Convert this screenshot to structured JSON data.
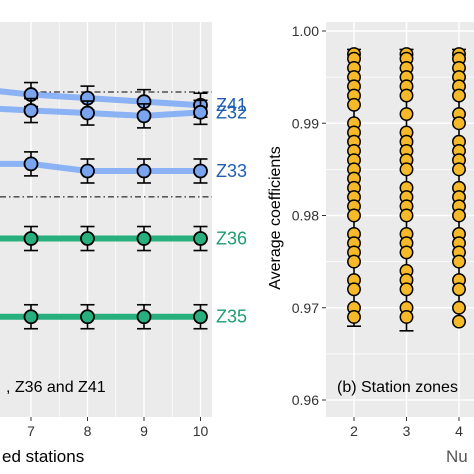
{
  "chart_data": [
    {
      "type": "line",
      "panel_label": ", Z36 and Z41",
      "xlabel": "ed stations",
      "x_ticks": [
        7,
        8,
        9,
        10
      ],
      "grid": true,
      "colors": {
        "blue_line": "#8bb2f4",
        "blue_point": "#7aa4ee",
        "blue_text": "#1f5fb3",
        "green": "#27b07e",
        "green_text": "#1e9e6f"
      },
      "series": [
        {
          "name": "Z41",
          "color_key": "blue",
          "x": [
            6.4,
            7,
            8,
            9,
            10
          ],
          "y": [
            0.955,
            0.945,
            0.935,
            0.925,
            0.915
          ]
        },
        {
          "name": "Z32",
          "color_key": "blue",
          "x": [
            6.4,
            7,
            8,
            9,
            10
          ],
          "y": [
            0.905,
            0.9,
            0.893,
            0.885,
            0.895
          ]
        },
        {
          "name": "Z33",
          "color_key": "blue",
          "x": [
            6.4,
            7,
            8,
            9,
            10
          ],
          "y": [
            0.75,
            0.75,
            0.73,
            0.73,
            0.73
          ]
        },
        {
          "name": "Z36",
          "color_key": "green",
          "x": [
            6.4,
            7,
            8,
            9,
            10
          ],
          "y": [
            0.54,
            0.54,
            0.54,
            0.54,
            0.54
          ]
        },
        {
          "name": "Z35",
          "color_key": "green",
          "x": [
            6.4,
            7,
            8,
            9,
            10
          ],
          "y": [
            0.32,
            0.32,
            0.32,
            0.32,
            0.32
          ]
        }
      ],
      "reference_lines": [
        0.955,
        0.66
      ]
    },
    {
      "type": "scatter",
      "panel_label": "(b) Station zones",
      "ylabel": "Average coefficients",
      "xlabel": "Nu",
      "x_ticks": [
        2,
        3,
        4
      ],
      "y_ticks": [
        0.96,
        0.97,
        0.98,
        0.99,
        "1.00"
      ],
      "ylim": [
        0.96,
        1.0
      ],
      "grid": true,
      "point_color": "#f5b929",
      "groups": [
        {
          "x": 2,
          "y": [
            0.9975,
            0.997,
            0.996,
            0.995,
            0.994,
            0.993,
            0.992,
            0.99,
            0.989,
            0.988,
            0.987,
            0.986,
            0.985,
            0.984,
            0.983,
            0.982,
            0.981,
            0.98,
            0.978,
            0.977,
            0.976,
            0.975,
            0.973,
            0.972,
            0.97,
            0.969
          ]
        },
        {
          "x": 3,
          "y": [
            0.9975,
            0.997,
            0.996,
            0.995,
            0.994,
            0.993,
            0.991,
            0.989,
            0.988,
            0.987,
            0.986,
            0.985,
            0.983,
            0.982,
            0.981,
            0.98,
            0.978,
            0.977,
            0.976,
            0.974,
            0.973,
            0.972,
            0.97,
            0.969
          ]
        },
        {
          "x": 4,
          "y": [
            0.9975,
            0.997,
            0.996,
            0.995,
            0.994,
            0.993,
            0.991,
            0.99,
            0.988,
            0.987,
            0.986,
            0.985,
            0.983,
            0.982,
            0.981,
            0.98,
            0.978,
            0.977,
            0.976,
            0.975,
            0.973,
            0.972,
            0.97,
            0.9685
          ]
        }
      ],
      "error_bars": [
        {
          "x": 2,
          "ymin": 0.968,
          "ymax": 0.998
        },
        {
          "x": 3,
          "ymin": 0.9675,
          "ymax": 0.998
        },
        {
          "x": 4,
          "ymin": 0.9685,
          "ymax": 0.998
        }
      ]
    }
  ]
}
